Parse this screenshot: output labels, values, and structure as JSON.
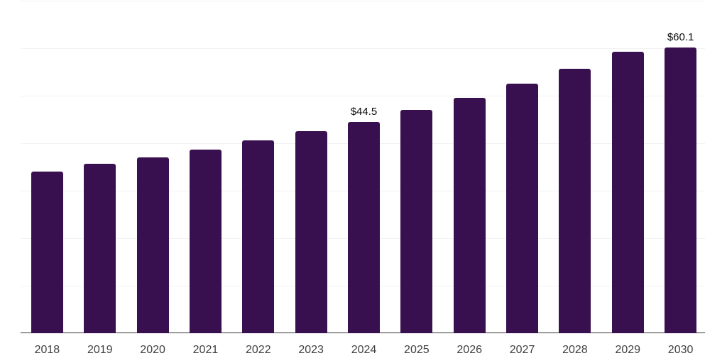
{
  "chart_data": {
    "type": "bar",
    "title": "",
    "xlabel": "",
    "ylabel": "",
    "categories": [
      "2018",
      "2019",
      "2020",
      "2021",
      "2022",
      "2023",
      "2024",
      "2025",
      "2026",
      "2027",
      "2028",
      "2029",
      "2030"
    ],
    "values": [
      34.1,
      35.6,
      37.0,
      38.7,
      40.6,
      42.5,
      44.5,
      47.0,
      49.6,
      52.5,
      55.6,
      59.2,
      60.1
    ],
    "point_labels": [
      "",
      "",
      "",
      "",
      "",
      "",
      "$44.5",
      "",
      "",
      "",
      "",
      "",
      "$60.1"
    ],
    "ylim": [
      0,
      70
    ],
    "gridline_step": 10,
    "grid": "horizontal-only",
    "y_axis_labels_visible": false,
    "legend_position": "none",
    "colors": {
      "bar": "#39104F",
      "gridline": "#F2F2F2",
      "axis_line": "#333333",
      "tick_label": "#404040",
      "point_label": "#0D0D0D",
      "background": "#FFFFFF"
    }
  }
}
